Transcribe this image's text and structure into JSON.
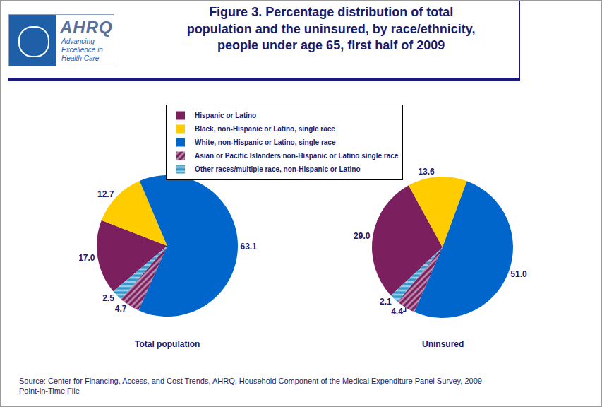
{
  "title": [
    "Figure 3. Percentage distribution of total",
    "population and the uninsured, by race/ethnicity,",
    "people under age 65, first half of 2009"
  ],
  "logo": {
    "name": "AHRQ",
    "tagline": [
      "Advancing",
      "Excellence in",
      "Health Care"
    ]
  },
  "source": [
    "Source: Center for Financing, Access, and Cost Trends, AHRQ, Household Component of the Medical Expenditure Panel Survey, 2009",
    "Point-in-Time File"
  ],
  "chart_data": [
    {
      "type": "pie",
      "title": "Total population",
      "categories": [
        "Hispanic or Latino",
        "Black, non-Hispanic or Latino, single race",
        "White, non-Hispanic or Latino, single race",
        "Asian or Pacific Islanders non-Hispanic or Latino single race",
        "Other races/multiple race, non-Hispanic or Latino"
      ],
      "values": [
        17.0,
        12.7,
        63.1,
        4.7,
        2.5
      ],
      "value_labels": [
        "17.0",
        "12.7",
        "63.1",
        "4.7",
        "2.5"
      ],
      "colors": [
        "#7b1f5e",
        "#ffcc00",
        "#0066cc",
        "#7b1f5e",
        "#3399cc"
      ],
      "data_labels": true,
      "legend": "top"
    },
    {
      "type": "pie",
      "title": "Uninsured",
      "categories": [
        "Hispanic or Latino",
        "Black, non-Hispanic or Latino, single race",
        "White, non-Hispanic or Latino, single race",
        "Asian or Pacific Islanders non-Hispanic or Latino single race",
        "Other races/multiple race, non-Hispanic or Latino"
      ],
      "values": [
        29.0,
        13.6,
        51.0,
        4.4,
        2.1
      ],
      "value_labels": [
        "29.0",
        "13.6",
        "51.0",
        "4.4",
        "2.1"
      ],
      "colors": [
        "#7b1f5e",
        "#ffcc00",
        "#0066cc",
        "#7b1f5e",
        "#3399cc"
      ],
      "data_labels": true
    }
  ]
}
